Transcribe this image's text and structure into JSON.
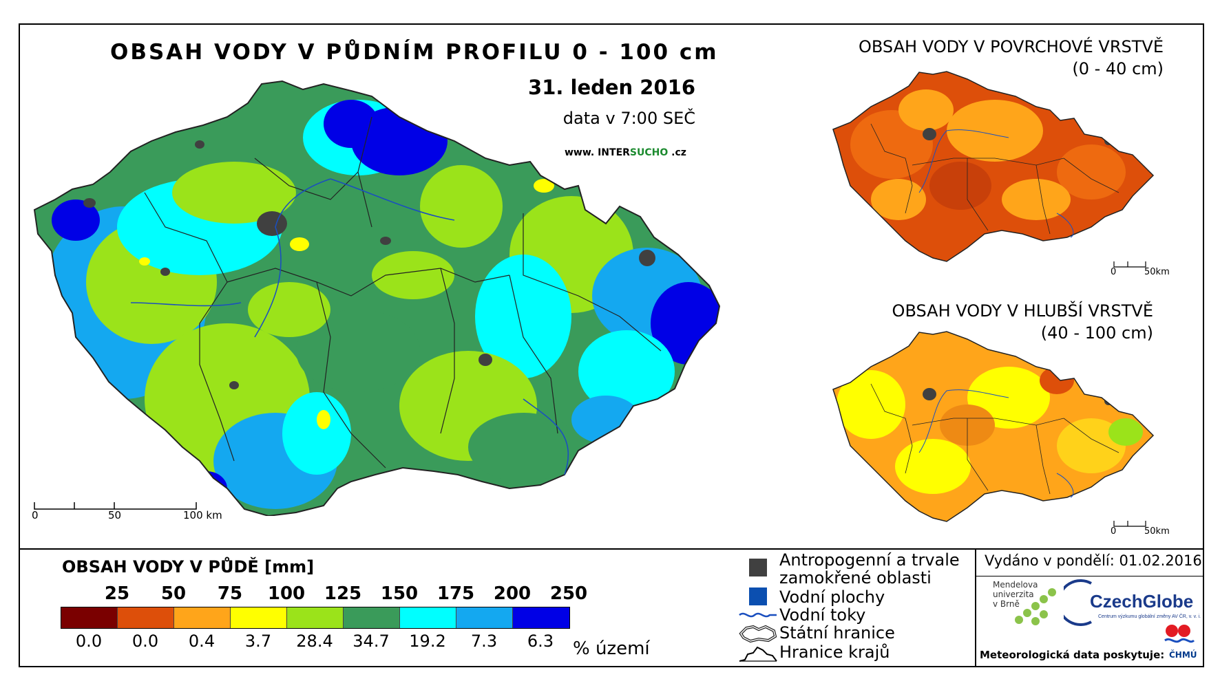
{
  "main": {
    "title": "OBSAH VODY V PŮDNÍM PROFILU 0 - 100 cm",
    "date": "31. leden 2016",
    "time": "data v 7:00 SEČ",
    "web_prefix": "www. INTER",
    "web_highlight": "SUCHO",
    "web_suffix": " .cz",
    "scale": {
      "zero": "0",
      "mid": "50",
      "end": "100 km"
    }
  },
  "surface_map": {
    "title_line1": "OBSAH VODY V POVRCHOVÉ VRSTVĚ",
    "title_line2": "(0 - 40 cm)",
    "scale": {
      "zero": "0",
      "end": "50km"
    }
  },
  "deep_map": {
    "title_line1": "OBSAH VODY V HLUBŠÍ VRSTVĚ",
    "title_line2": "(40 - 100 cm)",
    "scale": {
      "zero": "0",
      "end": "50km"
    }
  },
  "legend": {
    "title": "OBSAH VODY V PŮDĚ [mm]",
    "thresholds": [
      "25",
      "50",
      "75",
      "100",
      "125",
      "150",
      "175",
      "200",
      "250"
    ],
    "colors": [
      "#7a0000",
      "#dd4f0a",
      "#ffa51a",
      "#ffff00",
      "#9be31a",
      "#3a9b5a",
      "#00ffff",
      "#14a8f0",
      "#0000e6"
    ],
    "percentages": [
      "0.0",
      "0.0",
      "0.4",
      "3.7",
      "28.4",
      "34.7",
      "19.2",
      "7.3",
      "6.3"
    ],
    "percent_unit": "% území"
  },
  "map_legend": {
    "anthropogenic_line1": "Antropogenní a trvale",
    "anthropogenic_line2": "zamokřené oblasti",
    "water_bodies": "Vodní plochy",
    "rivers": "Vodní toky",
    "state_border": "Státní hranice",
    "region_border": "Hranice krajů",
    "anthropogenic_color": "#404040",
    "water_color": "#0b4fb0",
    "river_color": "#1a4fbf"
  },
  "footer": {
    "issued": "Vydáno v pondělí: 01.02.2016",
    "mendel_line1": "Mendelova",
    "mendel_line2": "univerzita",
    "mendel_line3": "v Brně",
    "czechglobe": "CzechGlobe",
    "czechglobe_sub": "Centrum výzkumu globální změny AV ČR, v. v. i.",
    "meteo": "Meteorologická data poskytuje:",
    "chmu": "ČHMÚ"
  }
}
